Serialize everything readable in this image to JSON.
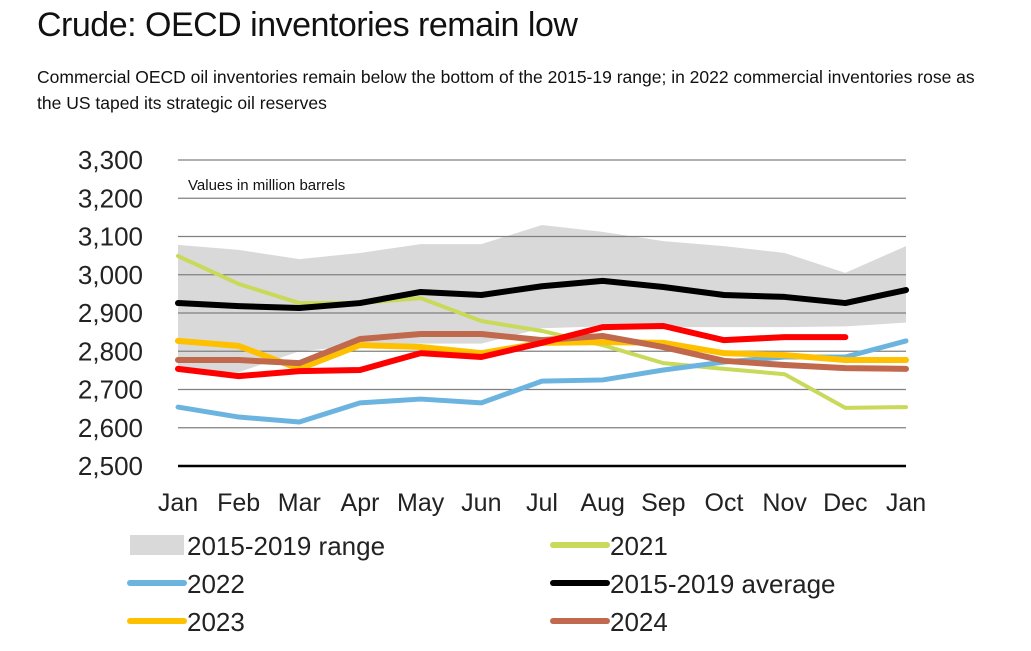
{
  "title": "Crude: OECD inventories remain low",
  "subtitle": "Commercial OECD oil inventories remain below the bottom of the 2015-19 range; in 2022 commercial inventories rose as the US taped its strategic oil reserves",
  "chart_data": {
    "type": "line",
    "title": "Crude: OECD inventories remain low",
    "annotation": "Values in million barrels",
    "xlabel": "",
    "ylabel": "",
    "categories": [
      "Jan",
      "Feb",
      "Mar",
      "Apr",
      "May",
      "Jun",
      "Jul",
      "Aug",
      "Sep",
      "Oct",
      "Nov",
      "Dec",
      "Jan"
    ],
    "ylim": [
      2500,
      3300
    ],
    "yticks": [
      3300,
      3200,
      3100,
      3000,
      2900,
      2800,
      2700,
      2600,
      2500
    ],
    "ytick_labels": [
      "3,300",
      "3,200",
      "3,100",
      "3,000",
      "2,900",
      "2,800",
      "2,700",
      "2,600",
      "2,500"
    ],
    "grid": true,
    "legend_position": "bottom",
    "range": {
      "name": "2015-2019 range",
      "color": "#d9d9d9",
      "upper": [
        3078,
        3065,
        3041,
        3057,
        3080,
        3080,
        3130,
        3112,
        3088,
        3075,
        3057,
        3005,
        3075
      ],
      "lower": [
        2750,
        2745,
        2800,
        2815,
        2820,
        2820,
        2860,
        2865,
        2863,
        2863,
        2863,
        2865,
        2875
      ]
    },
    "series": [
      {
        "name": "2021",
        "color": "#c9d95a",
        "width": 4,
        "values": [
          3049,
          2976,
          2926,
          2926,
          2939,
          2879,
          2853,
          2816,
          2769,
          2754,
          2740,
          2652,
          2654
        ]
      },
      {
        "name": "2022",
        "color": "#6cb4e0",
        "width": 5,
        "values": [
          2654,
          2628,
          2615,
          2665,
          2675,
          2665,
          2722,
          2725,
          2751,
          2772,
          2785,
          2785,
          2827
        ]
      },
      {
        "name": "2023",
        "color": "#ffc000",
        "width": 6,
        "values": [
          2827,
          2814,
          2754,
          2816,
          2811,
          2795,
          2822,
          2824,
          2822,
          2795,
          2790,
          2777,
          2777
        ]
      },
      {
        "name": "2024",
        "color": "#c0694c",
        "width": 6,
        "values": [
          2777,
          2777,
          2769,
          2832,
          2845,
          2845,
          2829,
          2840,
          2811,
          2775,
          2764,
          2756,
          2754
        ]
      },
      {
        "name": "",
        "color": "#ff0000",
        "width": 6,
        "values": [
          2754,
          2735,
          2748,
          2751,
          2795,
          2785,
          2822,
          2863,
          2866,
          2829,
          2837,
          2837,
          null
        ]
      },
      {
        "name": "2015-2019 average",
        "color": "#000000",
        "width": 6,
        "values": [
          2926,
          2918,
          2913,
          2926,
          2955,
          2947,
          2970,
          2984,
          2968,
          2947,
          2942,
          2926,
          2960
        ]
      }
    ],
    "legend": [
      {
        "label": "2015-2019 range",
        "kind": "area",
        "color": "#d9d9d9"
      },
      {
        "label": "2021",
        "kind": "line",
        "color": "#c9d95a"
      },
      {
        "label": "2022",
        "kind": "line",
        "color": "#6cb4e0"
      },
      {
        "label": "2015-2019 average",
        "kind": "line",
        "color": "#000000"
      },
      {
        "label": "2023",
        "kind": "line",
        "color": "#ffc000"
      },
      {
        "label": "2024",
        "kind": "line",
        "color": "#c0694c"
      }
    ]
  }
}
